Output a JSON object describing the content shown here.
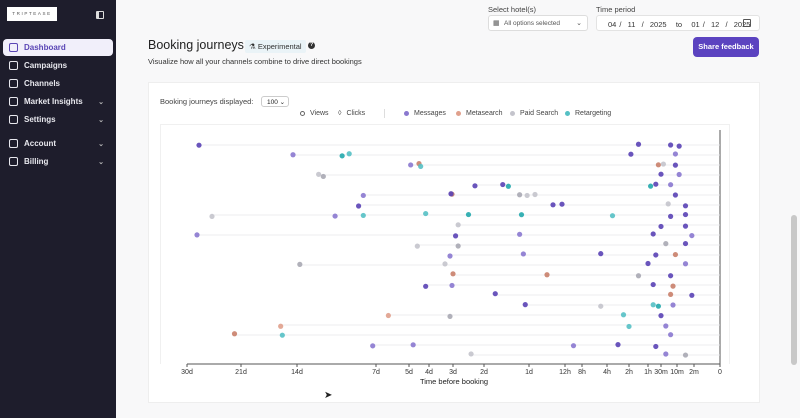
{
  "sidebar": {
    "logo": "TRIPTEASE",
    "items": [
      {
        "label": "Dashboard",
        "icon": "home-icon",
        "active": true
      },
      {
        "label": "Campaigns",
        "icon": "megaphone-icon"
      },
      {
        "label": "Channels",
        "icon": "channels-icon"
      },
      {
        "label": "Market Insights",
        "icon": "chart-icon",
        "chevron": true
      },
      {
        "label": "Settings",
        "icon": "gear-icon",
        "chevron": true
      },
      {
        "label": "Account",
        "icon": "user-icon",
        "chevron": true
      },
      {
        "label": "Billing",
        "icon": "wallet-icon",
        "chevron": true
      }
    ]
  },
  "header": {
    "title": "Booking journeys",
    "badge": "Experimental",
    "subtitle": "Visualize how all your channels combine to drive direct bookings",
    "hotel_label": "Select hotel(s)",
    "hotel_value": "All options selected",
    "time_label": "Time period",
    "date_range": "04 /  11  /  2025   to   01 /  12  /  2025",
    "share_button": "Share feedback"
  },
  "controls": {
    "displayed_label": "Booking journeys displayed:",
    "displayed_value": "100"
  },
  "legend": {
    "views": "Views",
    "clicks": "Clicks",
    "channels": [
      {
        "name": "Messages",
        "color": "#8a78cf"
      },
      {
        "name": "Metasearch",
        "color": "#e0a08c"
      },
      {
        "name": "Paid Search",
        "color": "#c4c4cc"
      },
      {
        "name": "Retargeting",
        "color": "#55c0c4"
      }
    ]
  },
  "chart_data": {
    "type": "scatter",
    "xlabel": "Time before booking",
    "x_unit": "hours before booking",
    "x_reversed": true,
    "ticks": [
      {
        "label": "30d",
        "h": 720
      },
      {
        "label": "21d",
        "h": 504
      },
      {
        "label": "14d",
        "h": 336
      },
      {
        "label": "7d",
        "h": 168
      },
      {
        "label": "5d",
        "h": 120
      },
      {
        "label": "4d",
        "h": 96
      },
      {
        "label": "3d",
        "h": 72
      },
      {
        "label": "2d",
        "h": 48
      },
      {
        "label": "1d",
        "h": 24
      },
      {
        "label": "12h",
        "h": 12
      },
      {
        "label": "8h",
        "h": 8
      },
      {
        "label": "4h",
        "h": 4
      },
      {
        "label": "2h",
        "h": 2
      },
      {
        "label": "1h",
        "h": 1
      },
      {
        "label": "30m",
        "h": 0.5
      },
      {
        "label": "10m",
        "h": 0.167
      },
      {
        "label": "2m",
        "h": 0.033
      },
      {
        "label": "0",
        "h": 0
      }
    ],
    "channel_codes": {
      "M": "Messages",
      "S": "Metasearch",
      "P": "Paid Search",
      "R": "Retargeting"
    },
    "journeys": [
      [
        [
          672,
          "M"
        ],
        [
          1.5,
          "M"
        ],
        [
          0.3,
          "M"
        ],
        [
          0.15,
          "M"
        ]
      ],
      [
        [
          348,
          "M"
        ],
        [
          240,
          "R"
        ],
        [
          225,
          "R"
        ],
        [
          1.9,
          "M"
        ],
        [
          0.2,
          "M"
        ]
      ],
      [
        [
          118,
          "M"
        ],
        [
          108,
          "S"
        ],
        [
          106,
          "R"
        ],
        [
          0.6,
          "S"
        ],
        [
          0.45,
          "P"
        ],
        [
          0.2,
          "M"
        ]
      ],
      [
        [
          290,
          "P"
        ],
        [
          280,
          "P"
        ],
        [
          0.5,
          "M"
        ],
        [
          0.15,
          "M"
        ]
      ],
      [
        [
          55,
          "M"
        ],
        [
          38,
          "M"
        ],
        [
          35,
          "R"
        ],
        [
          0.9,
          "R"
        ],
        [
          0.7,
          "M"
        ],
        [
          0.3,
          "M"
        ]
      ],
      [
        [
          195,
          "M"
        ],
        [
          73,
          "S"
        ],
        [
          74,
          "M"
        ],
        [
          29,
          "P"
        ],
        [
          25,
          "P"
        ],
        [
          22,
          "P"
        ],
        [
          0.2,
          "M"
        ]
      ],
      [
        [
          205,
          "M"
        ],
        [
          16,
          "M"
        ],
        [
          13,
          "M"
        ],
        [
          0.35,
          "P"
        ],
        [
          0.1,
          "M"
        ]
      ],
      [
        [
          620,
          "P"
        ],
        [
          255,
          "M"
        ],
        [
          195,
          "R"
        ],
        [
          100,
          "R"
        ],
        [
          60,
          "R"
        ],
        [
          28,
          "R"
        ],
        [
          3.5,
          "R"
        ],
        [
          0.3,
          "M"
        ],
        [
          0.1,
          "M"
        ]
      ],
      [
        [
          68,
          "P"
        ],
        [
          0.5,
          "M"
        ],
        [
          0.1,
          "M"
        ]
      ],
      [
        [
          680,
          "M"
        ],
        [
          70,
          "M"
        ],
        [
          29,
          "M"
        ],
        [
          0.8,
          "M"
        ],
        [
          0.05,
          "M"
        ]
      ],
      [
        [
          110,
          "P"
        ],
        [
          68,
          "P"
        ],
        [
          0.4,
          "P"
        ],
        [
          0.1,
          "M"
        ]
      ],
      [
        [
          75,
          "M"
        ],
        [
          27,
          "M"
        ],
        [
          5,
          "M"
        ],
        [
          0.7,
          "M"
        ],
        [
          0.2,
          "S"
        ]
      ],
      [
        [
          330,
          "P"
        ],
        [
          80,
          "P"
        ],
        [
          1,
          "M"
        ],
        [
          0.1,
          "M"
        ]
      ],
      [
        [
          72,
          "S"
        ],
        [
          18,
          "S"
        ],
        [
          1.5,
          "P"
        ],
        [
          0.3,
          "M"
        ]
      ],
      [
        [
          100,
          "M"
        ],
        [
          73,
          "M"
        ],
        [
          0.8,
          "M"
        ],
        [
          0.25,
          "S"
        ]
      ],
      [
        [
          42,
          "M"
        ],
        [
          0.3,
          "S"
        ],
        [
          0.05,
          "M"
        ]
      ],
      [
        [
          26,
          "M"
        ],
        [
          5,
          "P"
        ],
        [
          0.8,
          "R"
        ],
        [
          0.6,
          "R"
        ],
        [
          0.25,
          "M"
        ]
      ],
      [
        [
          150,
          "S"
        ],
        [
          75,
          "P"
        ],
        [
          2.5,
          "R"
        ],
        [
          0.5,
          "M"
        ]
      ],
      [
        [
          385,
          "S"
        ],
        [
          2,
          "R"
        ],
        [
          0.4,
          "M"
        ]
      ],
      [
        [
          530,
          "S"
        ],
        [
          380,
          "R"
        ],
        [
          0.3,
          "M"
        ]
      ],
      [
        [
          175,
          "M"
        ],
        [
          115,
          "M"
        ],
        [
          10,
          "M"
        ],
        [
          3,
          "M"
        ],
        [
          0.7,
          "M"
        ]
      ],
      [
        [
          58,
          "P"
        ],
        [
          0.4,
          "M"
        ],
        [
          0.1,
          "P"
        ]
      ]
    ]
  }
}
